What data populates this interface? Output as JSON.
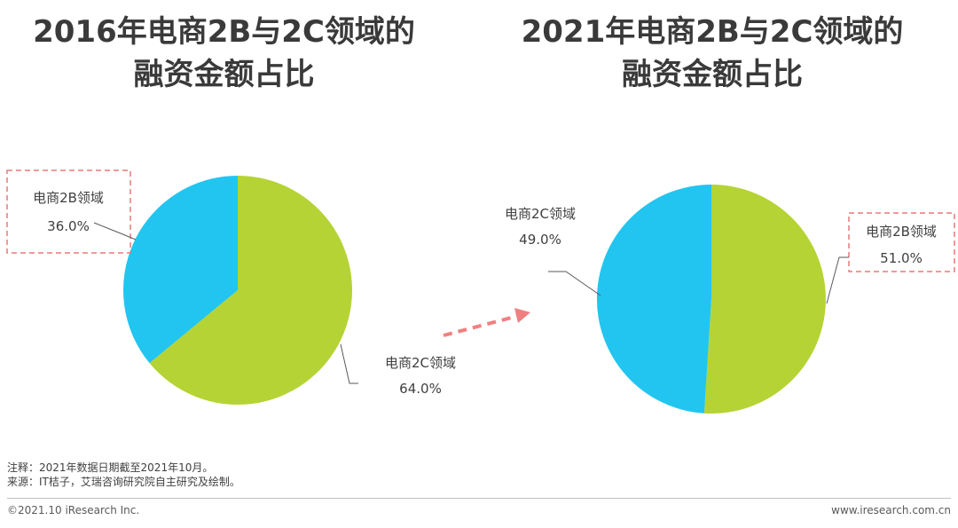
{
  "charts": {
    "left": {
      "title": "2016年电商2B与2C领域的\n融资金额占比"
    },
    "right": {
      "title": "2021年电商2B与2C领域的\n融资金额占比"
    }
  },
  "chart_data": [
    {
      "type": "pie",
      "title": "2016年电商2B与2C领域的融资金额占比",
      "slices": [
        {
          "label": "电商2B领域",
          "value": 36.0,
          "value_label": "36.0%",
          "color": "#22c5f0"
        },
        {
          "label": "电商2C领域",
          "value": 64.0,
          "value_label": "64.0%",
          "color": "#b5d334"
        }
      ]
    },
    {
      "type": "pie",
      "title": "2021年电商2B与2C领域的融资金额占比",
      "slices": [
        {
          "label": "电商2B领域",
          "value": 51.0,
          "value_label": "51.0%",
          "color": "#b5d334"
        },
        {
          "label": "电商2C领域",
          "value": 49.0,
          "value_label": "49.0%",
          "color": "#22c5f0"
        }
      ]
    }
  ],
  "notes": {
    "note": "注释：2021年数据日期截至2021年10月。",
    "source": "来源：IT桔子，艾瑞咨询研究院自主研究及绘制。"
  },
  "footer": {
    "copyright": "©2021.10 iResearch Inc.",
    "website": "www.iresearch.com.cn"
  },
  "colors": {
    "callout_border": "#e87a7a",
    "arrow": "#f08080"
  }
}
